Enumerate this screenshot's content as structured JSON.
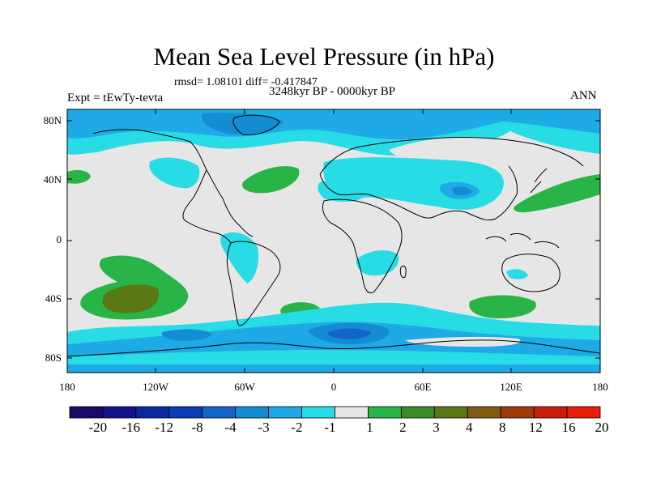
{
  "header": {
    "title": "Mean Sea Level Pressure (in hPa)",
    "stats": "rmsd= 1.08101 diff= -0.417847",
    "period": "3248kyr BP - 0000kyr BP",
    "experiment": "Expt = tEwTy-tevta",
    "season": "ANN"
  },
  "axes": {
    "lat_labels": [
      "80N",
      "40N",
      "0",
      "40S",
      "80S"
    ],
    "lon_labels": [
      "180",
      "120W",
      "60W",
      "0",
      "60E",
      "120E",
      "180"
    ]
  },
  "colorbar": {
    "labels": [
      "-20",
      "-16",
      "-12",
      "-8",
      "-4",
      "-3",
      "-2",
      "-1",
      "1",
      "2",
      "3",
      "4",
      "8",
      "12",
      "16",
      "20"
    ],
    "colors": [
      "#1a0a64",
      "#12128c",
      "#0a28a0",
      "#0a3cb4",
      "#1464c8",
      "#148cd2",
      "#1eaae6",
      "#28dce6",
      "#e6e6e6",
      "#28b446",
      "#3c8c28",
      "#5a7814",
      "#825a14",
      "#a03c0a",
      "#c81e0a",
      "#e61e0a"
    ]
  },
  "colors": {
    "neutral": "#e6e6e6",
    "light_cyan": "#28dce6",
    "cyan": "#1eaae6",
    "blue": "#148cd2",
    "deep_blue": "#1464c8",
    "navy": "#0a3cb4",
    "green": "#28b446",
    "olive": "#5a7814",
    "coast": "#000000"
  }
}
